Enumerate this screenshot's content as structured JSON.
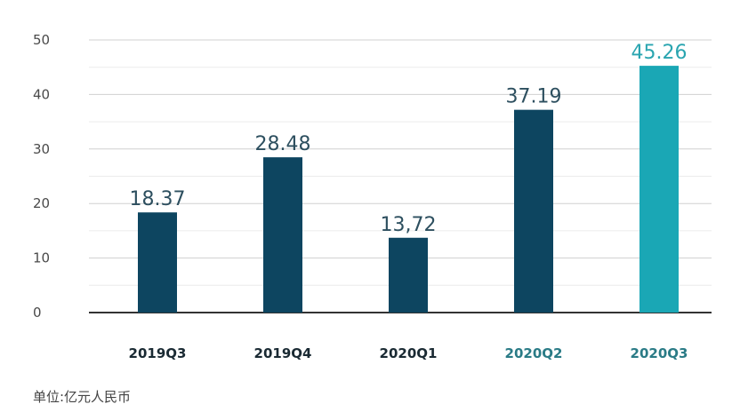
{
  "chart_data": {
    "type": "bar",
    "categories": [
      "2019Q3",
      "2019Q4",
      "2020Q1",
      "2020Q2",
      "2020Q3"
    ],
    "values": [
      18.37,
      28.48,
      13.72,
      37.19,
      45.26
    ],
    "value_labels": [
      "18.37",
      "28.48",
      "13,72",
      "37.19",
      "45.26"
    ],
    "ylim": [
      0,
      50
    ],
    "yticks": [
      0,
      10,
      20,
      30,
      40,
      50
    ],
    "grid": true,
    "highlight_category": "2020Q3",
    "unit_note": "单位:亿元人民币"
  },
  "colors": {
    "bar": "#0d4560",
    "bar_highlight": "#1aa7b5",
    "label_default": "#1a2a33",
    "label_emphasis": "#2a7b86",
    "value_label_default": "#2d4f5f",
    "value_label_highlight": "#2aa5b0",
    "gridline": "#d0d0d0",
    "minor_gridline": "#ececec",
    "baseline": "#333333"
  }
}
